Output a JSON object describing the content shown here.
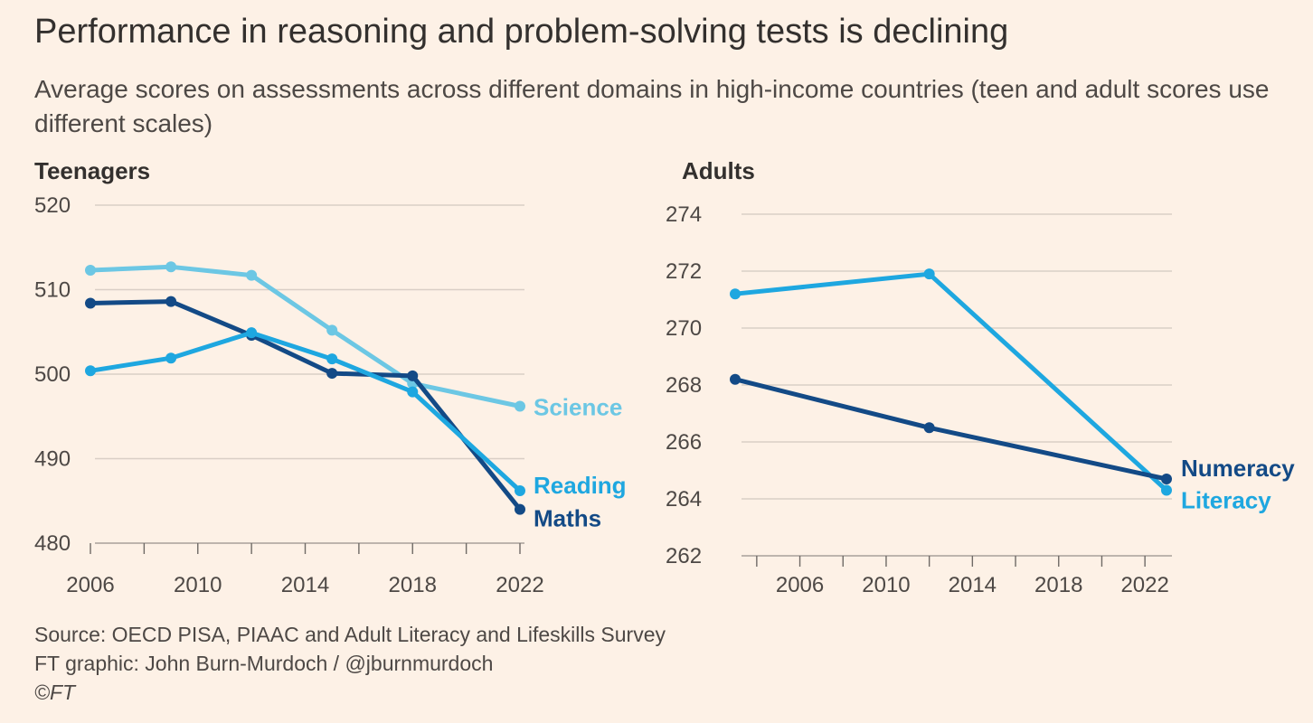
{
  "title": "Performance in reasoning and problem-solving tests is declining",
  "subtitle": "Average scores on assessments across different domains in high-income countries (teen and adult scores use different scales)",
  "footer": {
    "source": "Source: OECD PISA, PIAAC and Adult Literacy and Lifeskills Survey",
    "credit": "FT graphic: John Burn-Murdoch / @jburnmurdoch",
    "copyright": "©FT"
  },
  "colors": {
    "background": "#fdf1e6",
    "grid": "#d9cfc6",
    "science": "#6cc7e4",
    "reading": "#1ea7e0",
    "maths": "#134a86",
    "numeracy": "#134a86",
    "literacy": "#1ea7e0"
  },
  "chart_data": [
    {
      "type": "line",
      "title": "Teenagers",
      "xlim": [
        2006,
        2022
      ],
      "ylim": [
        480,
        520
      ],
      "x_ticks": [
        2006,
        2010,
        2014,
        2018,
        2022
      ],
      "x_minor_ticks": [
        2006,
        2008,
        2010,
        2012,
        2014,
        2016,
        2018,
        2020,
        2022
      ],
      "y_ticks": [
        480,
        490,
        500,
        510,
        520
      ],
      "grid": true,
      "series": [
        {
          "name": "Science",
          "color_key": "science",
          "x": [
            2006,
            2009,
            2012,
            2015,
            2018,
            2022
          ],
          "values": [
            512.3,
            512.7,
            511.7,
            505.2,
            498.9,
            496.2
          ]
        },
        {
          "name": "Maths",
          "color_key": "maths",
          "x": [
            2006,
            2009,
            2012,
            2015,
            2018,
            2022
          ],
          "values": [
            508.4,
            508.6,
            504.6,
            500.1,
            499.8,
            484.0
          ]
        },
        {
          "name": "Reading",
          "color_key": "reading",
          "x": [
            2006,
            2009,
            2012,
            2015,
            2018,
            2022
          ],
          "values": [
            500.4,
            501.9,
            504.9,
            501.8,
            497.9,
            486.2
          ]
        }
      ]
    },
    {
      "type": "line",
      "title": "Adults",
      "xlim": [
        2003,
        2023
      ],
      "ylim": [
        262,
        274
      ],
      "x_ticks": [
        2006,
        2010,
        2014,
        2018,
        2022
      ],
      "x_minor_ticks": [
        2004,
        2006,
        2008,
        2010,
        2012,
        2014,
        2016,
        2018,
        2020,
        2022
      ],
      "y_ticks": [
        262,
        264,
        266,
        268,
        270,
        272,
        274
      ],
      "grid": true,
      "series": [
        {
          "name": "Literacy",
          "color_key": "literacy",
          "x": [
            2003,
            2012,
            2023
          ],
          "values": [
            271.2,
            271.9,
            264.3
          ]
        },
        {
          "name": "Numeracy",
          "color_key": "numeracy",
          "x": [
            2003,
            2012,
            2023
          ],
          "values": [
            268.2,
            266.5,
            264.7
          ]
        }
      ]
    }
  ]
}
